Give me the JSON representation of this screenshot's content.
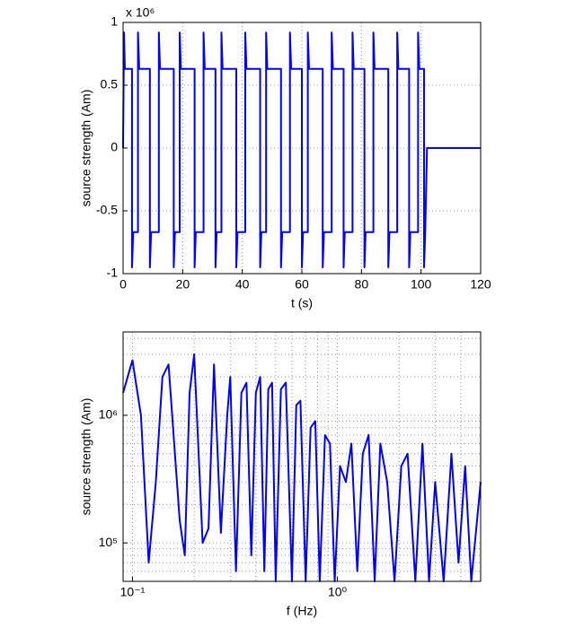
{
  "chart_data": [
    {
      "type": "line",
      "xlabel": "t (s)",
      "ylabel": "source strength (Am)",
      "y_multiplier": "x 10⁶",
      "color": "#0000ff",
      "grid": true,
      "xlim": [
        0,
        120
      ],
      "xticks": [
        0,
        20,
        40,
        60,
        80,
        100,
        120
      ],
      "ylim": [
        -1,
        1
      ],
      "yticks": [
        -1,
        -0.5,
        0,
        0.5,
        1
      ],
      "x": [
        0,
        0.3,
        0.6,
        3,
        3,
        3.4,
        5,
        5,
        5.4,
        9,
        9,
        9.4,
        12,
        12,
        12.4,
        17,
        17,
        17.4,
        19,
        19,
        19.4,
        24,
        24,
        24.4,
        27,
        27,
        27.4,
        31,
        31,
        31.4,
        33,
        33,
        33.4,
        38,
        38,
        38.4,
        41,
        41,
        41.4,
        46,
        46,
        46.4,
        48,
        48,
        48.4,
        53,
        53,
        53.4,
        56,
        56,
        56.4,
        60,
        60,
        60.4,
        62,
        62,
        62.4,
        67,
        67,
        67.4,
        70,
        70,
        70.4,
        74,
        74,
        74.4,
        77,
        77,
        77.4,
        81,
        81,
        81.4,
        84,
        84,
        84.4,
        89,
        89,
        89.4,
        92,
        92,
        92.4,
        96,
        96,
        96.4,
        99,
        99,
        99.4,
        101,
        101,
        101.4,
        102,
        120
      ],
      "values": [
        0,
        0.92,
        0.63,
        0.63,
        -0.95,
        -0.67,
        -0.67,
        0.92,
        0.63,
        0.63,
        -0.95,
        -0.67,
        -0.67,
        0.92,
        0.63,
        0.63,
        -0.95,
        -0.67,
        -0.67,
        0.92,
        0.63,
        0.63,
        -0.95,
        -0.67,
        -0.67,
        0.92,
        0.63,
        0.63,
        -0.95,
        -0.67,
        -0.67,
        0.92,
        0.63,
        0.63,
        -0.95,
        -0.67,
        -0.67,
        0.92,
        0.63,
        0.63,
        -0.95,
        -0.67,
        -0.67,
        0.92,
        0.63,
        0.63,
        -0.95,
        -0.67,
        -0.67,
        0.92,
        0.63,
        0.63,
        -0.95,
        -0.67,
        -0.67,
        0.92,
        0.63,
        0.63,
        -0.95,
        -0.67,
        -0.67,
        0.92,
        0.63,
        0.63,
        -0.95,
        -0.67,
        -0.67,
        0.92,
        0.63,
        0.63,
        -0.95,
        -0.67,
        -0.67,
        0.92,
        0.63,
        0.63,
        -0.95,
        -0.67,
        -0.67,
        0.92,
        0.63,
        0.63,
        -0.95,
        -0.67,
        -0.67,
        0.92,
        0.63,
        0.63,
        -0.95,
        -0.67,
        0,
        0
      ]
    },
    {
      "type": "line",
      "xlabel": "f (Hz)",
      "ylabel": "source strength (Am)",
      "color": "#0000ff",
      "grid": true,
      "xscale": "log",
      "yscale": "log",
      "xlim": [
        0.09,
        5
      ],
      "xticks": [
        {
          "value": 0.1,
          "label": "10⁻¹"
        },
        {
          "value": 1,
          "label": "10⁰"
        }
      ],
      "xminorticks": [
        0.2,
        0.3,
        0.4,
        0.5,
        0.6,
        0.7,
        0.8,
        0.9,
        2,
        3,
        4
      ],
      "ylim": [
        50000,
        4500000
      ],
      "yticks": [
        {
          "value": 100000,
          "label": "10⁵"
        },
        {
          "value": 1000000,
          "label": "10⁶"
        }
      ],
      "yminorticks": [
        60000,
        70000,
        80000,
        90000,
        200000,
        300000,
        400000,
        500000,
        600000,
        700000,
        800000,
        900000,
        2000000,
        3000000,
        4000000
      ],
      "x": [
        0.09,
        0.1,
        0.11,
        0.12,
        0.13,
        0.14,
        0.15,
        0.17,
        0.18,
        0.19,
        0.2,
        0.22,
        0.235,
        0.25,
        0.27,
        0.29,
        0.3,
        0.32,
        0.34,
        0.36,
        0.38,
        0.4,
        0.42,
        0.44,
        0.46,
        0.48,
        0.5,
        0.53,
        0.56,
        0.6,
        0.63,
        0.66,
        0.7,
        0.74,
        0.78,
        0.82,
        0.87,
        0.92,
        0.97,
        1.03,
        1.1,
        1.17,
        1.25,
        1.33,
        1.42,
        1.52,
        1.62,
        1.75,
        1.9,
        2.05,
        2.2,
        2.4,
        2.6,
        2.8,
        3.0,
        3.3,
        3.6,
        3.9,
        4.2,
        4.5,
        5
      ],
      "values": [
        1500000,
        2700000,
        1000000,
        70000,
        300000,
        2000000,
        2500000,
        150000,
        80000,
        1500000,
        3000000,
        100000,
        130000,
        2500000,
        120000,
        1000000,
        2000000,
        60000,
        1500000,
        1800000,
        80000,
        1500000,
        2000000,
        60000,
        1600000,
        1800000,
        50000,
        1600000,
        1800000,
        50000,
        1200000,
        1300000,
        50000,
        800000,
        900000,
        50000,
        700000,
        600000,
        50000,
        400000,
        300000,
        600000,
        60000,
        500000,
        700000,
        50000,
        600000,
        300000,
        50000,
        400000,
        500000,
        50000,
        600000,
        50000,
        300000,
        50000,
        500000,
        70000,
        400000,
        50000,
        300000
      ]
    }
  ]
}
